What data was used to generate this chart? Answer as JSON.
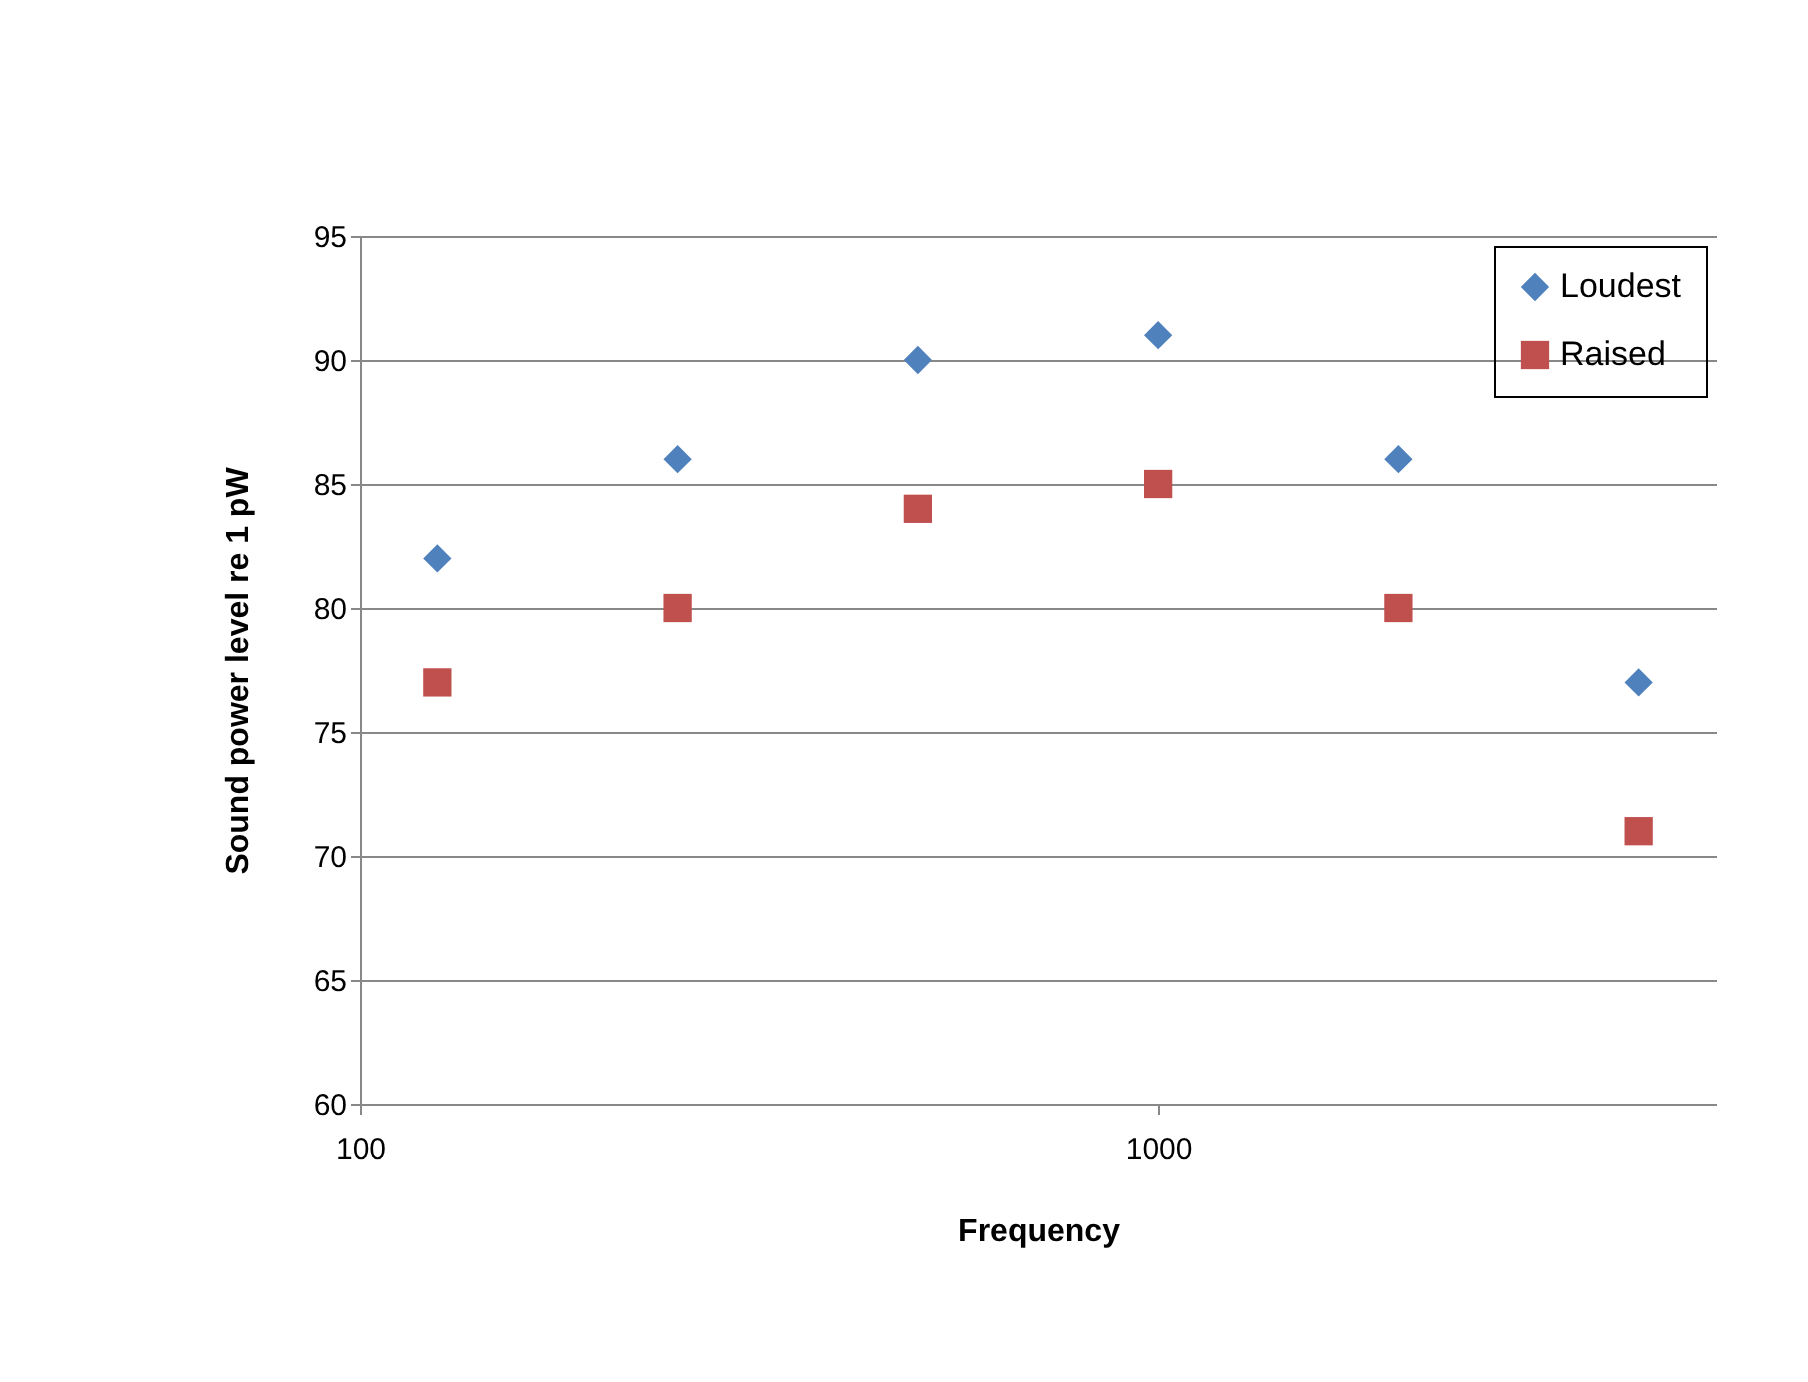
{
  "chart_data": {
    "type": "scatter",
    "xlabel": "Frequency",
    "ylabel": "Sound power level re 1 pW",
    "x": [
      125,
      250,
      500,
      1000,
      2000,
      4000
    ],
    "series": [
      {
        "name": "Loudest",
        "color": "#4f81bd",
        "marker": "diamond",
        "values": [
          82,
          86,
          90,
          91,
          86,
          77
        ]
      },
      {
        "name": "Raised",
        "color": "#c0504d",
        "marker": "square",
        "values": [
          77,
          80,
          84,
          85,
          80,
          71
        ]
      }
    ],
    "log": "x",
    "xlim": [
      100,
      5000
    ],
    "xticks": [
      100,
      1000
    ],
    "ylim": [
      60,
      95
    ],
    "yticks": [
      60,
      65,
      70,
      75,
      80,
      85,
      90,
      95
    ],
    "grid": "y",
    "legend": "top right"
  }
}
